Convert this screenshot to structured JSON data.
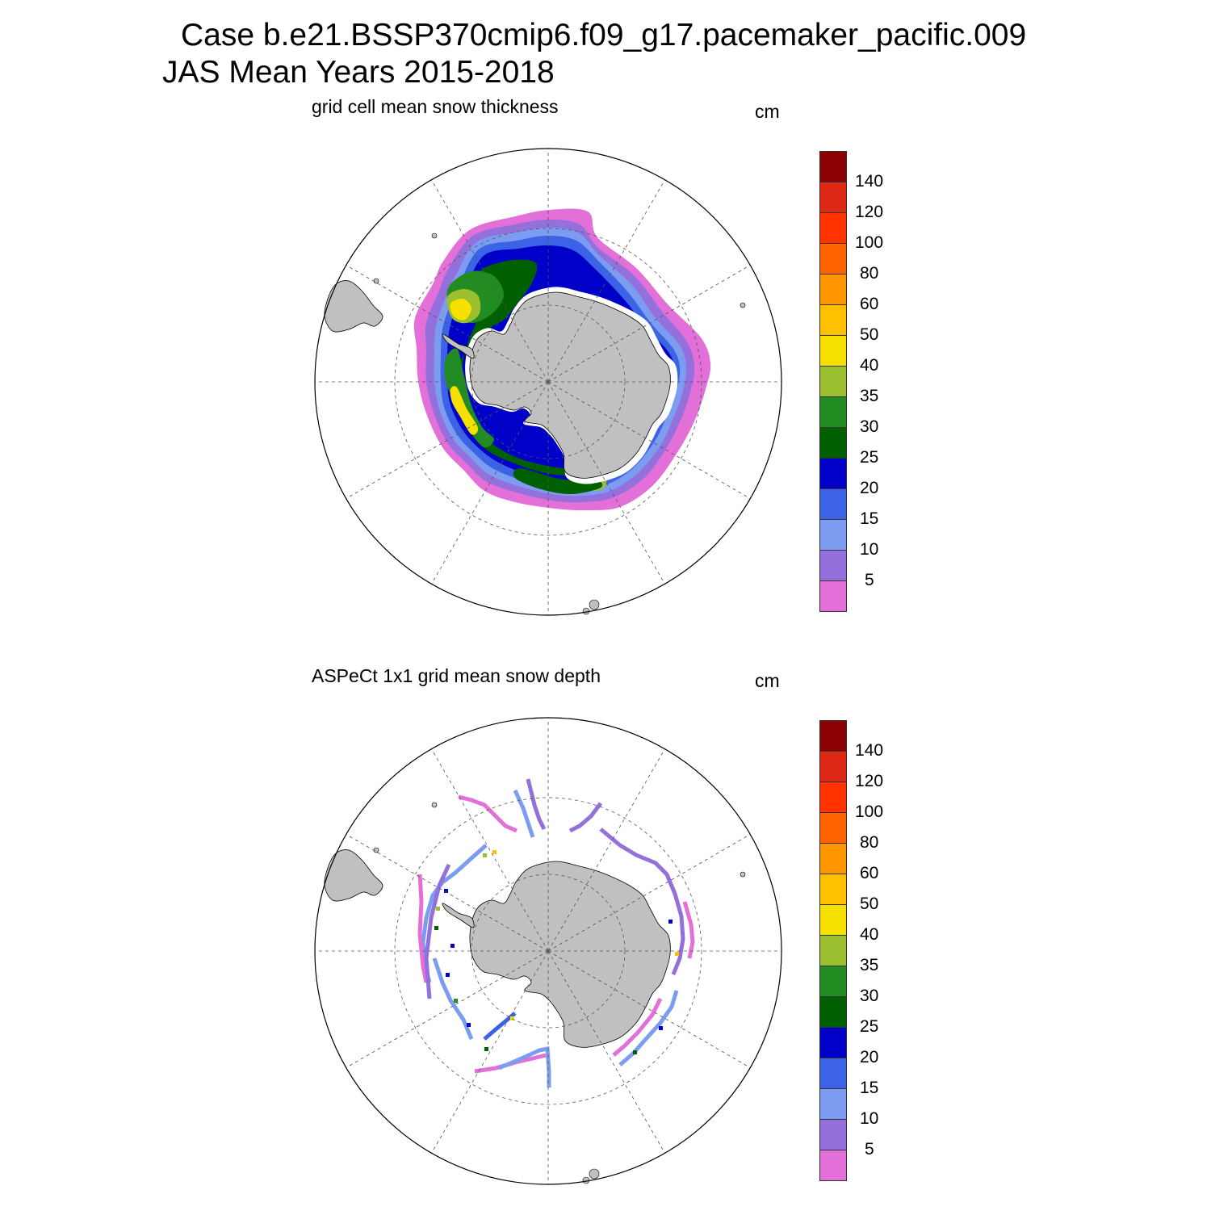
{
  "header": {
    "line1": "Case b.e21.BSSP370cmip6.f09_g17.pacemaker_pacific.009",
    "line2": "JAS Mean   Years 2015-2018"
  },
  "panels": [
    {
      "title": "grid cell mean snow thickness",
      "unit": "cm"
    },
    {
      "title": "ASPeCt 1x1 grid mean snow depth",
      "unit": "cm"
    }
  ],
  "colorbar": {
    "labels": [
      "5",
      "10",
      "15",
      "20",
      "25",
      "30",
      "35",
      "40",
      "50",
      "60",
      "80",
      "100",
      "120",
      "140"
    ],
    "colors": [
      "#e36fd8",
      "#9370db",
      "#7b9cf0",
      "#3c63e6",
      "#0000c8",
      "#006000",
      "#228b22",
      "#9bbf2f",
      "#f5e000",
      "#ffc000",
      "#ff9600",
      "#ff6400",
      "#ff3200",
      "#dc2814",
      "#8b0000"
    ]
  },
  "map_colors": {
    "land": "#c0c0c0",
    "grid": "#555555"
  }
}
